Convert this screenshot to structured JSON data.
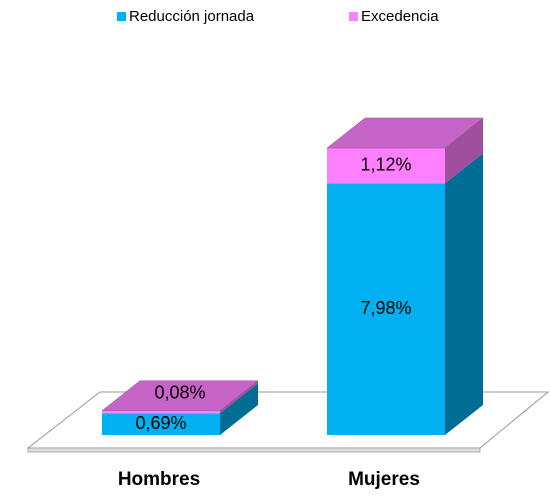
{
  "chart_data": {
    "type": "bar3d_stacked",
    "categories": [
      "Hombres",
      "Mujeres"
    ],
    "series": [
      {
        "name": "Reducción jornada",
        "color": "#00b0f0",
        "values": [
          0.69,
          7.98
        ],
        "value_labels": [
          "0,69%",
          "7,98%"
        ]
      },
      {
        "name": "Excedencia",
        "color": "#ff80ff",
        "values": [
          0.08,
          1.12
        ],
        "value_labels": [
          "0,08%",
          "1,12%"
        ]
      }
    ],
    "legend": "top"
  }
}
